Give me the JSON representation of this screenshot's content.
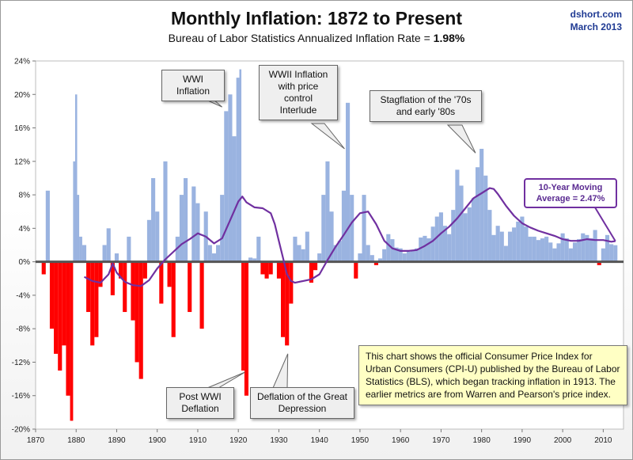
{
  "header": {
    "title": "Monthly Inflation: 1872 to Present",
    "subtitle_prefix": "Bureau of Labor Statistics Annualized Inflation Rate =",
    "subtitle_value": "1.98%",
    "source_site": "dshort.com",
    "source_date": "March 2013"
  },
  "annotations": {
    "wwi": "WWI Inflation",
    "wwii": "WWII Inflation with price control Interlude",
    "stagflation": "Stagflation of the '70s and early '80s",
    "moving_avg": "10-Year Moving Average = 2.47%",
    "post_wwi": "Post WWI Deflation",
    "depression": "Deflation of the Great Depression",
    "note": "This chart shows the official Consumer Price Index for Urban Consumers (CPI-U) published by the Bureau of Labor Statistics (BLS), which began tracking inflation in 1913.  The earlier metrics are from Warren and Pearson's  price index."
  },
  "chart_data": {
    "type": "area",
    "title": "Monthly Inflation: 1872 to Present",
    "xlabel": "",
    "ylabel": "",
    "xlim": [
      1870,
      2015
    ],
    "ylim": [
      -20,
      24
    ],
    "x_ticks": [
      "1870",
      "1880",
      "1890",
      "1900",
      "1910",
      "1920",
      "1930",
      "1940",
      "1950",
      "1960",
      "1970",
      "1980",
      "1990",
      "2000",
      "2010"
    ],
    "y_ticks": [
      "24%",
      "20%",
      "16%",
      "12%",
      "8%",
      "4%",
      "0%",
      "-4%",
      "-8%",
      "-12%",
      "-16%",
      "-20%"
    ],
    "grid": false,
    "colors": {
      "positive": "#9ab3e0",
      "negative": "#ff0000",
      "moving_average": "#7030a0",
      "zero_line": "#555555"
    },
    "inflation": {
      "name": "Annualized Inflation Rate",
      "x": [
        1872,
        1873,
        1874,
        1875,
        1876,
        1877,
        1878,
        1879,
        1879.5,
        1880,
        1880.5,
        1881,
        1882,
        1883,
        1884,
        1885,
        1886,
        1887,
        1888,
        1889,
        1890,
        1891,
        1892,
        1893,
        1894,
        1895,
        1896,
        1897,
        1898,
        1899,
        1900,
        1901,
        1902,
        1903,
        1904,
        1905,
        1906,
        1907,
        1908,
        1909,
        1910,
        1911,
        1912,
        1913,
        1914,
        1915,
        1916,
        1917,
        1918,
        1919,
        1920,
        1920.5,
        1921,
        1922,
        1923,
        1924,
        1925,
        1926,
        1927,
        1928,
        1929,
        1930,
        1931,
        1932,
        1933,
        1934,
        1935,
        1936,
        1937,
        1938,
        1939,
        1940,
        1941,
        1942,
        1943,
        1944,
        1945,
        1946,
        1947,
        1948,
        1949,
        1950,
        1951,
        1952,
        1953,
        1954,
        1955,
        1956,
        1957,
        1958,
        1959,
        1960,
        1961,
        1962,
        1963,
        1964,
        1965,
        1966,
        1967,
        1968,
        1969,
        1970,
        1971,
        1972,
        1973,
        1974,
        1975,
        1976,
        1977,
        1978,
        1979,
        1980,
        1981,
        1982,
        1983,
        1984,
        1985,
        1986,
        1987,
        1988,
        1989,
        1990,
        1991,
        1992,
        1993,
        1994,
        1995,
        1996,
        1997,
        1998,
        1999,
        2000,
        2001,
        2002,
        2003,
        2004,
        2005,
        2006,
        2007,
        2008,
        2009,
        2010,
        2011,
        2012,
        2013
      ],
      "values": [
        -1.5,
        8.5,
        -8,
        -11,
        -13,
        -10,
        -16,
        -19,
        12,
        20,
        8,
        3,
        2,
        -6,
        -10,
        -9,
        -3,
        2,
        4,
        -4,
        1,
        -2,
        -6,
        3,
        -7,
        -12,
        -14,
        -2,
        5,
        10,
        6,
        -5,
        12,
        -3,
        -9,
        3,
        8,
        10,
        -6,
        9,
        7,
        -8,
        6,
        2,
        1,
        2,
        8,
        18,
        20,
        15,
        22,
        23,
        -13,
        -16,
        0.5,
        0.4,
        3,
        -1.5,
        -2,
        -1.5,
        0,
        -2,
        -9,
        -10,
        -5,
        3,
        2,
        1.5,
        3.6,
        -2.5,
        -1,
        1,
        8,
        12,
        6,
        2,
        2.5,
        8.5,
        19,
        8,
        -2,
        1,
        8,
        2,
        0.8,
        -0.4,
        0.4,
        1.5,
        3.3,
        2.7,
        1.7,
        1.6,
        1,
        1.2,
        1.3,
        1.6,
        2.9,
        3.1,
        2.8,
        4.2,
        5.4,
        5.9,
        4.3,
        3.3,
        6.2,
        11,
        9.1,
        5.8,
        6.5,
        7.6,
        11.3,
        13.5,
        10.3,
        6.2,
        3.2,
        4.3,
        3.6,
        1.9,
        3.6,
        4.1,
        4.8,
        5.4,
        4.2,
        3,
        3,
        2.6,
        2.8,
        3,
        2.3,
        1.6,
        2.2,
        3.4,
        2.8,
        1.6,
        2.3,
        2.7,
        3.4,
        3.2,
        2.8,
        3.8,
        -0.4,
        1.6,
        3.2,
        2.1,
        1.98
      ]
    },
    "moving_average": {
      "name": "10-Year Moving Average",
      "x": [
        1882,
        1884,
        1886,
        1888,
        1889,
        1890,
        1892,
        1894,
        1896,
        1898,
        1900,
        1902,
        1904,
        1906,
        1908,
        1910,
        1912,
        1914,
        1916,
        1918,
        1920,
        1921,
        1922,
        1924,
        1926,
        1928,
        1929,
        1930,
        1931,
        1932,
        1933,
        1934,
        1936,
        1938,
        1940,
        1942,
        1944,
        1946,
        1948,
        1950,
        1952,
        1954,
        1956,
        1958,
        1960,
        1962,
        1964,
        1966,
        1968,
        1970,
        1972,
        1974,
        1976,
        1978,
        1980,
        1982,
        1983,
        1984,
        1986,
        1988,
        1990,
        1992,
        1994,
        1996,
        1998,
        2000,
        2002,
        2004,
        2006,
        2008,
        2010,
        2012,
        2013
      ],
      "values": [
        -1.8,
        -2.3,
        -2.5,
        -1.5,
        -0.2,
        -1.3,
        -2.4,
        -2.8,
        -2.9,
        -2.2,
        -0.8,
        0.3,
        1.2,
        2.1,
        2.7,
        3.4,
        3,
        2.2,
        2.8,
        5,
        7.2,
        7.8,
        7.1,
        6.5,
        6.4,
        5.8,
        4.5,
        2.5,
        0.5,
        -1.5,
        -2.3,
        -2.5,
        -2.3,
        -2.1,
        -1.5,
        0.2,
        1.8,
        3.2,
        4.7,
        5.8,
        6,
        4.5,
        2.5,
        1.6,
        1.3,
        1.3,
        1.4,
        1.9,
        2.5,
        3.4,
        4.2,
        5.2,
        6.4,
        7.6,
        8.2,
        8.8,
        8.7,
        8.1,
        6.7,
        5.5,
        4.6,
        4.1,
        3.7,
        3.4,
        3.1,
        2.7,
        2.5,
        2.5,
        2.7,
        2.6,
        2.6,
        2.4,
        2.47
      ]
    }
  }
}
